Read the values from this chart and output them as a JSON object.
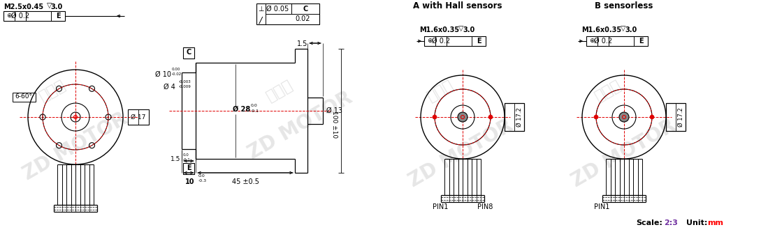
{
  "bg_color": "#ffffff",
  "line_color": "#000000",
  "red_color": "#e00000",
  "scale_color": "#7030a0",
  "unit_color": "#ff0000",
  "title_A": "A with Hall sensors",
  "title_B": "B sensorless",
  "scale_val": "2:3",
  "unit_val": "mm",
  "fss": 7.0,
  "fs_title": 8.5
}
